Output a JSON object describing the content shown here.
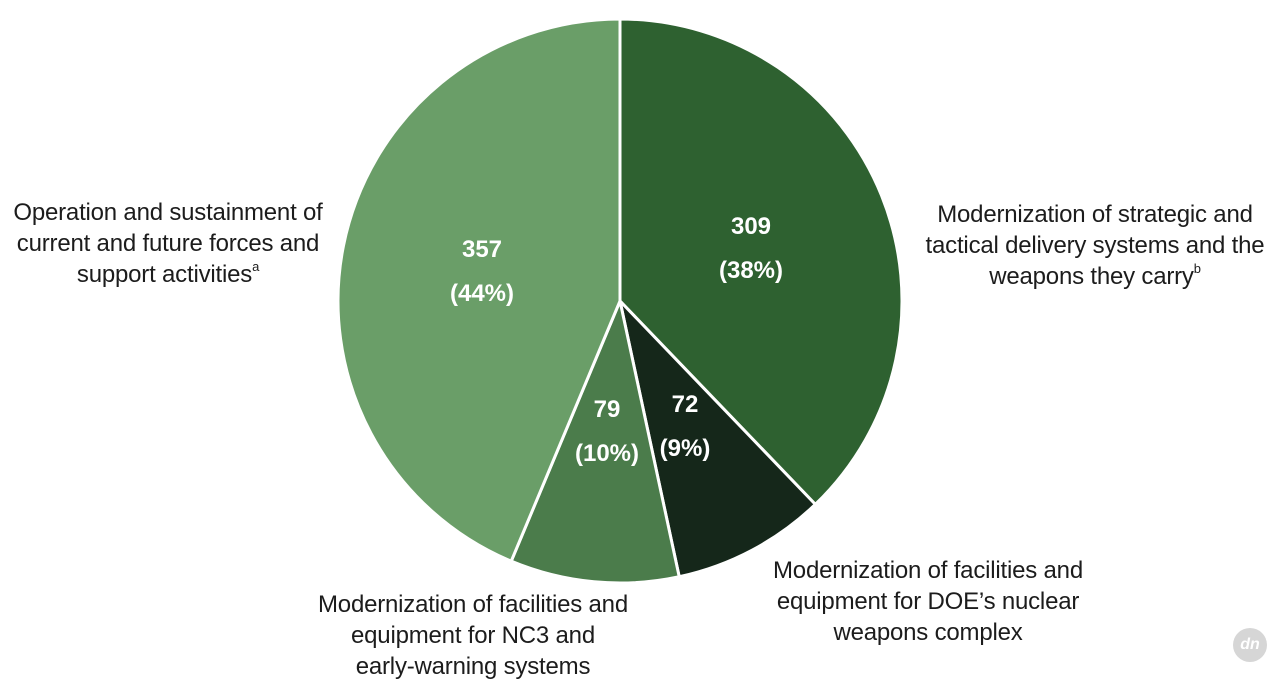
{
  "chart_data": {
    "type": "pie",
    "title": "",
    "slices": [
      {
        "value": 309,
        "percent_label": "(38%)",
        "label_lines": [
          "Modernization of strategic and",
          "tactical delivery systems and the",
          "weapons they carry"
        ],
        "footnote": "b",
        "color": "#2e6130"
      },
      {
        "value": 72,
        "percent_label": "(9%)",
        "label_lines": [
          "Modernization of facilities and",
          "equipment for DOE’s nuclear",
          "weapons complex"
        ],
        "footnote": "",
        "color": "#15271a"
      },
      {
        "value": 79,
        "percent_label": "(10%)",
        "label_lines": [
          "Modernization of facilities and",
          "equipment for NC3 and",
          "early-warning systems"
        ],
        "footnote": "",
        "color": "#4b7c4b"
      },
      {
        "value": 357,
        "percent_label": "(44%)",
        "label_lines": [
          "Operation and sustainment of",
          "current and future forces and",
          "support activities"
        ],
        "footnote": "a",
        "color": "#6a9e68"
      }
    ],
    "start_angle_deg": 0,
    "direction": "clockwise"
  },
  "watermark": {
    "text": "dn"
  }
}
